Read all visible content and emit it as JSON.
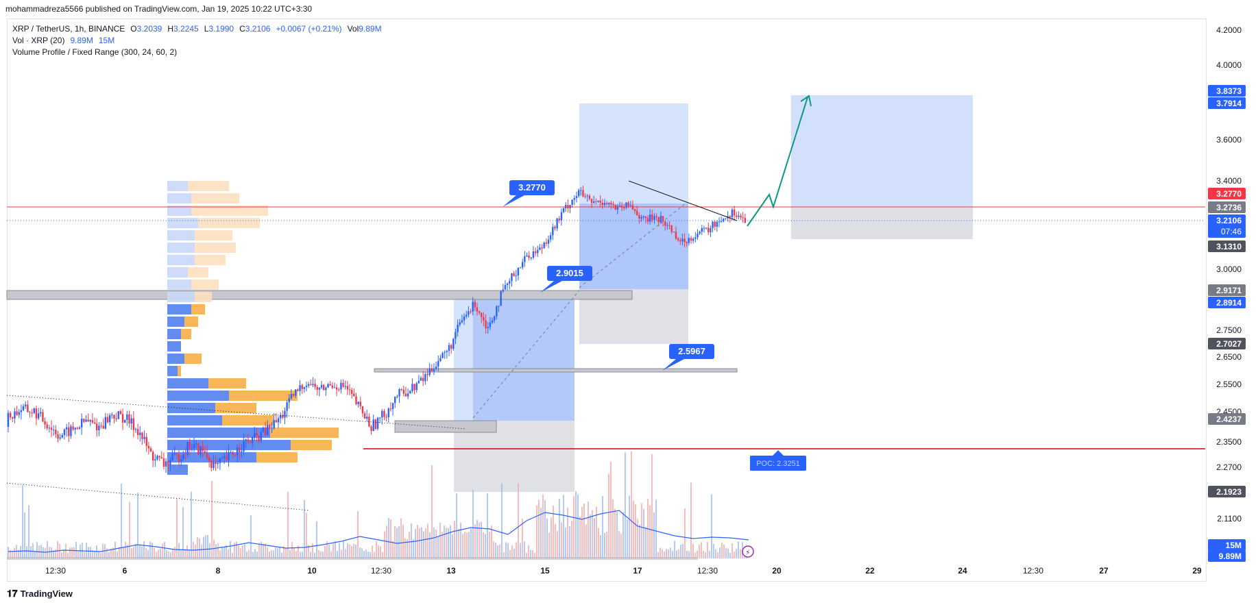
{
  "header": {
    "published": "mohammadreza5566 published on TradingView.com, Jan 19, 2025 10:22 UTC+3:30"
  },
  "legend": {
    "symbol": "XRP / TetherUS, 1h, BINANCE",
    "o_label": "O",
    "o": "3.2039",
    "h_label": "H",
    "h": "3.2245",
    "l_label": "L",
    "l": "3.1990",
    "c_label": "C",
    "c": "3.2106",
    "change": "+0.0067 (+0.21%)",
    "vol_label": "Vol",
    "vol": "9.89M",
    "vol_indicator": "Vol · XRP (20)",
    "vol_val1": "9.89M",
    "vol_val2": "15M",
    "vp_indicator": "Volume Profile / Fixed Range (300, 24, 60, 2)"
  },
  "brand": {
    "name": "TradingView"
  },
  "chart_data": {
    "type": "candlestick",
    "symbol": "XRP/USDT",
    "interval": "1h",
    "y_axis": {
      "ylim": [
        2.02,
        4.28
      ],
      "ticks": [
        "4.2000",
        "4.0000",
        "3.6000",
        "3.4000",
        "3.0000",
        "2.7500",
        "2.6500",
        "2.5500",
        "2.4500",
        "2.3500",
        "2.2700",
        "2.1100"
      ]
    },
    "x_axis": {
      "ticks": [
        "12:30",
        "6",
        "8",
        "10",
        "12:30",
        "13",
        "15",
        "17",
        "12:30",
        "20",
        "22",
        "24",
        "12:30",
        "27",
        "29"
      ]
    },
    "price_labels": [
      {
        "value": "3.8373",
        "color": "#2962ff"
      },
      {
        "value": "3.7914",
        "color": "#2962ff"
      },
      {
        "value": "3.2770",
        "color": "#f23645"
      },
      {
        "value": "3.2736",
        "color": "#787b86"
      },
      {
        "value": "3.2106",
        "color": "#2962ff",
        "sub": "07:46"
      },
      {
        "value": "3.1310",
        "color": "#50535e"
      },
      {
        "value": "2.9171",
        "color": "#787b86"
      },
      {
        "value": "2.8914",
        "color": "#2962ff"
      },
      {
        "value": "2.7027",
        "color": "#50535e"
      },
      {
        "value": "2.4237",
        "color": "#787b86"
      },
      {
        "value": "2.1923",
        "color": "#50535e"
      },
      {
        "value": "15M",
        "color": "#2962ff"
      },
      {
        "value": "9.89M",
        "color": "#2962ff"
      }
    ],
    "horizontal_lines": [
      {
        "price": 3.277,
        "color": "#f23645"
      },
      {
        "price": 2.3251,
        "color": "#d50000"
      }
    ],
    "annotations": [
      {
        "text": "3.2770",
        "price": 3.277
      },
      {
        "text": "2.9015",
        "price": 2.9015
      },
      {
        "text": "2.5967",
        "price": 2.5967
      },
      {
        "text": "POC: 2.3251",
        "price": 2.3251
      }
    ],
    "ohlc_path": [
      [
        2.4,
        2.45,
        2.39,
        2.43
      ],
      [
        2.43,
        2.47,
        2.42,
        2.46
      ],
      [
        2.46,
        2.48,
        2.44,
        2.45
      ],
      [
        2.45,
        2.46,
        2.4,
        2.41
      ],
      [
        2.41,
        2.43,
        2.36,
        2.37
      ],
      [
        2.37,
        2.4,
        2.34,
        2.39
      ],
      [
        2.39,
        2.43,
        2.38,
        2.42
      ],
      [
        2.42,
        2.44,
        2.38,
        2.4
      ],
      [
        2.4,
        2.45,
        2.39,
        2.44
      ],
      [
        2.44,
        2.46,
        2.42,
        2.43
      ],
      [
        2.43,
        2.45,
        2.38,
        2.39
      ],
      [
        2.39,
        2.4,
        2.3,
        2.31
      ],
      [
        2.31,
        2.34,
        2.26,
        2.28
      ],
      [
        2.28,
        2.32,
        2.25,
        2.3
      ],
      [
        2.3,
        2.36,
        2.29,
        2.34
      ],
      [
        2.34,
        2.37,
        2.3,
        2.32
      ],
      [
        2.32,
        2.35,
        2.26,
        2.27
      ],
      [
        2.27,
        2.31,
        2.25,
        2.3
      ],
      [
        2.3,
        2.35,
        2.29,
        2.34
      ],
      [
        2.34,
        2.38,
        2.32,
        2.36
      ],
      [
        2.36,
        2.4,
        2.35,
        2.39
      ],
      [
        2.39,
        2.44,
        2.38,
        2.43
      ],
      [
        2.43,
        2.52,
        2.42,
        2.51
      ],
      [
        2.51,
        2.6,
        2.5,
        2.56
      ],
      [
        2.56,
        2.58,
        2.52,
        2.53
      ],
      [
        2.53,
        2.56,
        2.51,
        2.55
      ],
      [
        2.55,
        2.57,
        2.52,
        2.54
      ],
      [
        2.54,
        2.55,
        2.46,
        2.47
      ],
      [
        2.47,
        2.49,
        2.38,
        2.4
      ],
      [
        2.4,
        2.46,
        2.33,
        2.44
      ],
      [
        2.44,
        2.52,
        2.43,
        2.51
      ],
      [
        2.51,
        2.55,
        2.49,
        2.53
      ],
      [
        2.53,
        2.58,
        2.52,
        2.57
      ],
      [
        2.57,
        2.64,
        2.56,
        2.63
      ],
      [
        2.63,
        2.7,
        2.62,
        2.68
      ],
      [
        2.68,
        2.8,
        2.67,
        2.79
      ],
      [
        2.79,
        2.89,
        2.77,
        2.86
      ],
      [
        2.86,
        2.88,
        2.72,
        2.76
      ],
      [
        2.76,
        2.9,
        2.74,
        2.89
      ],
      [
        2.89,
        3.0,
        2.88,
        2.98
      ],
      [
        2.98,
        3.08,
        2.96,
        3.06
      ],
      [
        3.06,
        3.1,
        3.02,
        3.09
      ],
      [
        3.09,
        3.2,
        3.08,
        3.18
      ],
      [
        3.18,
        3.3,
        3.17,
        3.28
      ],
      [
        3.28,
        3.37,
        3.26,
        3.35
      ],
      [
        3.35,
        3.38,
        3.28,
        3.3
      ],
      [
        3.3,
        3.34,
        3.25,
        3.31
      ],
      [
        3.31,
        3.33,
        3.24,
        3.27
      ],
      [
        3.27,
        3.31,
        3.22,
        3.29
      ],
      [
        3.29,
        3.3,
        3.2,
        3.22
      ],
      [
        3.22,
        3.26,
        3.2,
        3.24
      ],
      [
        3.24,
        3.27,
        3.18,
        3.19
      ],
      [
        3.19,
        3.22,
        3.1,
        3.12
      ],
      [
        3.12,
        3.18,
        3.1,
        3.16
      ],
      [
        3.16,
        3.2,
        3.13,
        3.18
      ],
      [
        3.18,
        3.25,
        3.17,
        3.23
      ],
      [
        3.23,
        3.29,
        3.2,
        3.26
      ],
      [
        3.26,
        3.28,
        3.19,
        3.21
      ]
    ],
    "volume_series": "hourly volume bars with 20-period MA (blue line)"
  }
}
